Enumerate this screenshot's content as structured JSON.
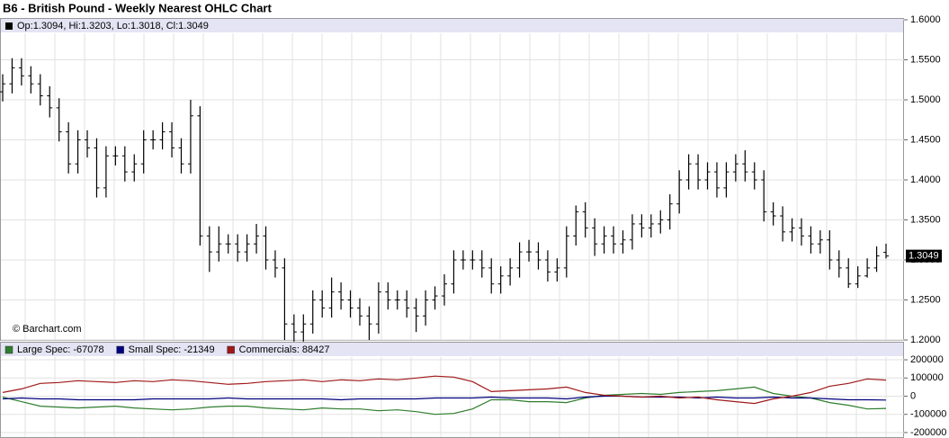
{
  "chart_data": [
    {
      "type": "ohlc",
      "title": "B6 - British Pound - Weekly Nearest OHLC Chart",
      "legend": "Op:1.3094, Hi:1.3203, Lo:1.3018, Cl:1.3049",
      "credit": "© Barchart.com",
      "color": "#000000",
      "open": [
        1.51,
        1.52,
        1.54,
        1.53,
        1.52,
        1.505,
        1.49,
        1.46,
        1.42,
        1.45,
        1.44,
        1.39,
        1.43,
        1.43,
        1.41,
        1.42,
        1.45,
        1.45,
        1.46,
        1.44,
        1.42,
        1.48,
        1.33,
        1.31,
        1.32,
        1.32,
        1.31,
        1.32,
        1.33,
        1.3,
        1.29,
        1.22,
        1.21,
        1.22,
        1.25,
        1.24,
        1.26,
        1.25,
        1.24,
        1.23,
        1.22,
        1.26,
        1.25,
        1.25,
        1.24,
        1.23,
        1.25,
        1.255,
        1.27,
        1.3,
        1.3,
        1.3,
        1.29,
        1.27,
        1.28,
        1.29,
        1.31,
        1.31,
        1.3,
        1.285,
        1.29,
        1.33,
        1.36,
        1.34,
        1.32,
        1.33,
        1.32,
        1.325,
        1.345,
        1.34,
        1.345,
        1.35,
        1.37,
        1.4,
        1.42,
        1.4,
        1.41,
        1.39,
        1.41,
        1.42,
        1.41,
        1.4,
        1.36,
        1.355,
        1.335,
        1.34,
        1.33,
        1.32,
        1.325,
        1.3,
        1.29,
        1.27,
        1.28,
        1.29,
        1.3094
      ],
      "high": [
        1.532,
        1.552,
        1.552,
        1.542,
        1.532,
        1.517,
        1.502,
        1.472,
        1.462,
        1.462,
        1.452,
        1.442,
        1.442,
        1.442,
        1.432,
        1.462,
        1.462,
        1.472,
        1.472,
        1.452,
        1.5,
        1.492,
        1.342,
        1.342,
        1.332,
        1.332,
        1.332,
        1.345,
        1.342,
        1.312,
        1.302,
        1.232,
        1.232,
        1.262,
        1.262,
        1.278,
        1.272,
        1.262,
        1.252,
        1.242,
        1.272,
        1.272,
        1.262,
        1.262,
        1.252,
        1.262,
        1.267,
        1.282,
        1.312,
        1.312,
        1.312,
        1.312,
        1.302,
        1.292,
        1.302,
        1.322,
        1.325,
        1.322,
        1.312,
        1.302,
        1.342,
        1.368,
        1.372,
        1.352,
        1.342,
        1.342,
        1.337,
        1.357,
        1.357,
        1.357,
        1.362,
        1.382,
        1.412,
        1.432,
        1.432,
        1.422,
        1.422,
        1.422,
        1.432,
        1.437,
        1.422,
        1.412,
        1.372,
        1.367,
        1.352,
        1.352,
        1.342,
        1.337,
        1.337,
        1.312,
        1.302,
        1.292,
        1.302,
        1.317,
        1.3203
      ],
      "low": [
        1.498,
        1.508,
        1.518,
        1.508,
        1.493,
        1.478,
        1.448,
        1.408,
        1.408,
        1.428,
        1.378,
        1.378,
        1.418,
        1.398,
        1.398,
        1.408,
        1.438,
        1.438,
        1.428,
        1.408,
        1.408,
        1.318,
        1.285,
        1.298,
        1.308,
        1.298,
        1.298,
        1.308,
        1.288,
        1.278,
        1.2,
        1.198,
        1.198,
        1.208,
        1.228,
        1.228,
        1.238,
        1.228,
        1.218,
        1.2,
        1.208,
        1.238,
        1.238,
        1.228,
        1.21,
        1.218,
        1.238,
        1.243,
        1.258,
        1.288,
        1.288,
        1.278,
        1.258,
        1.258,
        1.268,
        1.278,
        1.298,
        1.288,
        1.273,
        1.273,
        1.278,
        1.318,
        1.328,
        1.305,
        1.308,
        1.308,
        1.308,
        1.313,
        1.328,
        1.328,
        1.333,
        1.338,
        1.358,
        1.388,
        1.388,
        1.388,
        1.378,
        1.378,
        1.398,
        1.398,
        1.388,
        1.348,
        1.343,
        1.323,
        1.323,
        1.318,
        1.308,
        1.308,
        1.288,
        1.278,
        1.265,
        1.265,
        1.278,
        1.285,
        1.3018
      ],
      "close": [
        1.52,
        1.54,
        1.53,
        1.52,
        1.505,
        1.49,
        1.46,
        1.42,
        1.45,
        1.44,
        1.39,
        1.43,
        1.43,
        1.41,
        1.42,
        1.45,
        1.45,
        1.46,
        1.44,
        1.42,
        1.48,
        1.33,
        1.31,
        1.32,
        1.32,
        1.31,
        1.32,
        1.33,
        1.3,
        1.29,
        1.22,
        1.21,
        1.22,
        1.25,
        1.24,
        1.26,
        1.25,
        1.24,
        1.23,
        1.22,
        1.26,
        1.25,
        1.25,
        1.24,
        1.23,
        1.25,
        1.255,
        1.27,
        1.3,
        1.3,
        1.3,
        1.29,
        1.27,
        1.28,
        1.29,
        1.31,
        1.31,
        1.3,
        1.285,
        1.29,
        1.33,
        1.36,
        1.34,
        1.32,
        1.33,
        1.32,
        1.325,
        1.345,
        1.34,
        1.345,
        1.35,
        1.37,
        1.4,
        1.42,
        1.4,
        1.41,
        1.39,
        1.41,
        1.42,
        1.41,
        1.4,
        1.36,
        1.355,
        1.335,
        1.34,
        1.33,
        1.32,
        1.325,
        1.3,
        1.29,
        1.27,
        1.28,
        1.29,
        1.305,
        1.3049
      ],
      "ylim": [
        1.2,
        1.6
      ],
      "yticks": [
        {
          "value": 1.2,
          "label": "1.2000"
        },
        {
          "value": 1.25,
          "label": "1.2500"
        },
        {
          "value": 1.3,
          "label": "1.3000"
        },
        {
          "value": 1.35,
          "label": "1.3500"
        },
        {
          "value": 1.4,
          "label": "1.4000"
        },
        {
          "value": 1.45,
          "label": "1.4500"
        },
        {
          "value": 1.5,
          "label": "1.5000"
        },
        {
          "value": 1.55,
          "label": "1.5500"
        },
        {
          "value": 1.6,
          "label": "1.6000"
        }
      ],
      "grid": true
    },
    {
      "type": "line",
      "series": [
        {
          "name": "Large Spec: -67078",
          "color": "#2e7d2e",
          "values": [
            -5000,
            -30000,
            -55000,
            -60000,
            -65000,
            -60000,
            -55000,
            -65000,
            -70000,
            -75000,
            -70000,
            -60000,
            -55000,
            -55000,
            -65000,
            -70000,
            -75000,
            -65000,
            -70000,
            -70000,
            -80000,
            -75000,
            -85000,
            -100000,
            -95000,
            -70000,
            -20000,
            -20000,
            -30000,
            -30000,
            -35000,
            -10000,
            5000,
            10000,
            15000,
            10000,
            20000,
            25000,
            30000,
            40000,
            50000,
            15000,
            0,
            -10000,
            -35000,
            -50000,
            -70000,
            -67078
          ]
        },
        {
          "name": "Small Spec: -21349",
          "color": "#00007f",
          "values": [
            -15000,
            -10000,
            -15000,
            -15000,
            -20000,
            -20000,
            -20000,
            -20000,
            -15000,
            -15000,
            -15000,
            -15000,
            -10000,
            -15000,
            -15000,
            -15000,
            -15000,
            -15000,
            -20000,
            -15000,
            -15000,
            -15000,
            -15000,
            -10000,
            -10000,
            -10000,
            -5000,
            -10000,
            -10000,
            -10000,
            -15000,
            -5000,
            0,
            0,
            -5000,
            -5000,
            -5000,
            -10000,
            -5000,
            -10000,
            -10000,
            -5000,
            -10000,
            -10000,
            -15000,
            -20000,
            -20000,
            -21349
          ]
        },
        {
          "name": "Commercials: 88427",
          "color": "#a01818",
          "values": [
            20000,
            40000,
            70000,
            75000,
            85000,
            80000,
            75000,
            85000,
            80000,
            90000,
            85000,
            75000,
            65000,
            70000,
            80000,
            85000,
            90000,
            80000,
            90000,
            85000,
            95000,
            90000,
            100000,
            110000,
            105000,
            80000,
            25000,
            30000,
            35000,
            40000,
            50000,
            20000,
            5000,
            0,
            -5000,
            0,
            -10000,
            -5000,
            -20000,
            -30000,
            -40000,
            -15000,
            0,
            20000,
            55000,
            70000,
            95000,
            88427
          ]
        }
      ],
      "ylim": [
        -225000,
        220000
      ],
      "yticks": [
        -200000,
        -100000,
        0,
        100000,
        200000
      ],
      "grid": true
    }
  ]
}
